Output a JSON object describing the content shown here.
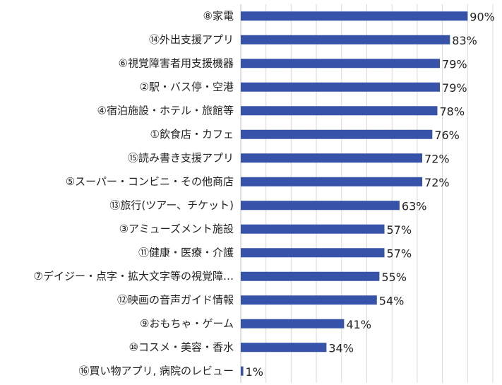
{
  "chart_data": {
    "type": "bar",
    "orientation": "horizontal",
    "categories": [
      "⑧家電",
      "⑭外出支援アプリ",
      "⑥視覚障害者用支援機器",
      "②駅・バス停・空港",
      "④宿泊施設・ホテル・旅館等",
      "①飲食店・カフェ",
      "⑮読み書き支援アプリ",
      "⑤スーパー・コンビニ・その他商店",
      "⑬旅行(ツアー、チケット)",
      "③アミューズメント施設",
      "⑪健康・医療・介護",
      "⑦デイジー・点字・拡大文字等の視覚障…",
      "⑫映画の音声ガイド情報",
      "⑨おもちゃ・ゲーム",
      "⑩コスメ・美容・香水",
      "⑯買い物アプリ, 病院のレビュー"
    ],
    "values": [
      90,
      83,
      79,
      79,
      78,
      76,
      72,
      72,
      63,
      57,
      57,
      55,
      54,
      41,
      34,
      1
    ],
    "value_labels": [
      "90%",
      "83%",
      "79%",
      "79%",
      "78%",
      "76%",
      "72%",
      "72%",
      "63%",
      "57%",
      "57%",
      "55%",
      "54%",
      "41%",
      "34%",
      "1%"
    ],
    "xlim": [
      0,
      100
    ],
    "grid": true,
    "legend": "none",
    "colors": {
      "bar": "#3653A9",
      "grid": "#D9D9D9",
      "text": "#222222"
    }
  }
}
